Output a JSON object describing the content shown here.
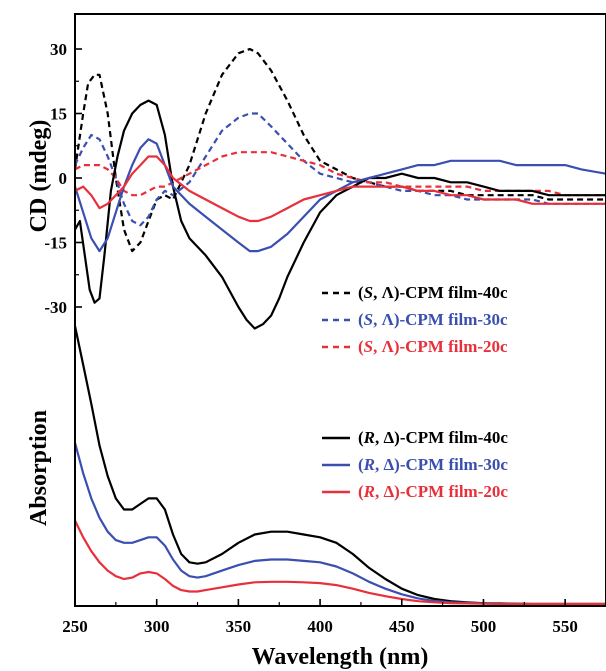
{
  "chart_data": [
    {
      "type": "line",
      "panel": "top",
      "ylabel": "CD (mdeg)",
      "xlim": [
        250,
        575
      ],
      "ylim": [
        -40,
        38
      ],
      "xticks": [
        250,
        300,
        350,
        400,
        450,
        500,
        550
      ],
      "yticks": [
        30,
        15,
        0,
        -15,
        -30
      ],
      "ytick_labels": [
        "30",
        "15",
        "0",
        "-15",
        "-30"
      ],
      "legend_position": "center-right",
      "series": [
        {
          "name": "(S, Λ)-CPM film-40c",
          "name_parts": [
            "(",
            "S",
            ", Λ)-CPM film-40c"
          ],
          "color": "#000000",
          "dash": "dashed",
          "x": [
            250,
            255,
            258,
            262,
            265,
            270,
            275,
            280,
            285,
            290,
            295,
            300,
            305,
            310,
            320,
            330,
            340,
            350,
            357,
            362,
            370,
            380,
            390,
            400,
            410,
            420,
            430,
            440,
            450,
            460,
            470,
            480,
            490,
            500,
            510,
            520,
            530,
            540,
            550,
            560,
            575
          ],
          "y": [
            2,
            15,
            22,
            24,
            24,
            15,
            0,
            -12,
            -17,
            -15,
            -10,
            -5,
            -4,
            -5,
            3,
            15,
            24,
            29,
            30,
            29,
            25,
            18,
            10,
            4,
            2,
            0,
            -1,
            -2,
            -2,
            -3,
            -3,
            -3,
            -4,
            -4,
            -4,
            -4,
            -4,
            -5,
            -5,
            -5,
            -5
          ]
        },
        {
          "name": "(S, Λ)-CPM film-30c",
          "name_parts": [
            "(",
            "S",
            ", Λ)-CPM film-30c"
          ],
          "color": "#3a4fb0",
          "dash": "dashed",
          "x": [
            250,
            255,
            260,
            265,
            270,
            275,
            280,
            285,
            290,
            295,
            300,
            305,
            310,
            320,
            330,
            340,
            350,
            357,
            362,
            370,
            380,
            390,
            400,
            410,
            420,
            430,
            440,
            450,
            460,
            470,
            480,
            490,
            500,
            510,
            520,
            530,
            540,
            550,
            560,
            575
          ],
          "y": [
            3,
            7,
            10,
            9,
            5,
            0,
            -6,
            -10,
            -11,
            -9,
            -5,
            -3,
            -4,
            -1,
            5,
            11,
            14,
            15,
            15,
            12,
            8,
            4,
            1,
            0,
            -1,
            -1,
            -2,
            -3,
            -3,
            -4,
            -4,
            -5,
            -5,
            -5,
            -5,
            -5,
            -6,
            -6,
            -6,
            -6
          ]
        },
        {
          "name": "(S, Λ)-CPM film-20c",
          "name_parts": [
            "(",
            "S",
            ", Λ)-CPM film-20c"
          ],
          "color": "#e8303a",
          "dash": "dashed",
          "x": [
            250,
            255,
            260,
            265,
            270,
            275,
            280,
            285,
            290,
            295,
            300,
            305,
            310,
            320,
            330,
            340,
            350,
            360,
            365,
            370,
            380,
            390,
            400,
            410,
            420,
            430,
            440,
            450,
            460,
            470,
            480,
            490,
            500,
            510,
            520,
            530,
            540,
            550,
            560,
            575
          ],
          "y": [
            2,
            3,
            3,
            3,
            2,
            0,
            -3,
            -4,
            -4,
            -3,
            -2,
            -2,
            -1,
            1,
            3,
            5,
            6,
            6,
            6,
            6,
            5,
            4,
            3,
            1,
            0,
            -1,
            -1,
            -2,
            -2,
            -2,
            -2,
            -2,
            -3,
            -3,
            -3,
            -3,
            -3,
            -4,
            -4,
            -4
          ]
        },
        {
          "name": "(R, Δ)-CPM film-40c",
          "color": "#000000",
          "dash": "solid",
          "x": [
            250,
            253,
            256,
            259,
            262,
            265,
            268,
            272,
            276,
            280,
            285,
            290,
            295,
            300,
            305,
            310,
            315,
            320,
            330,
            340,
            350,
            355,
            360,
            365,
            370,
            375,
            380,
            390,
            400,
            410,
            420,
            430,
            440,
            450,
            460,
            470,
            480,
            490,
            500,
            510,
            520,
            530,
            540,
            550,
            560,
            575
          ],
          "y": [
            -12,
            -10,
            -18,
            -26,
            -29,
            -28,
            -18,
            -3,
            5,
            11,
            15,
            17,
            18,
            17,
            10,
            -2,
            -10,
            -14,
            -18,
            -23,
            -30,
            -33,
            -35,
            -34,
            -32,
            -28,
            -23,
            -15,
            -8,
            -4,
            -2,
            0,
            0,
            1,
            0,
            0,
            -1,
            -1,
            -2,
            -3,
            -3,
            -3,
            -4,
            -4,
            -4,
            -4
          ]
        },
        {
          "name": "(R, Δ)-CPM film-30c",
          "color": "#3a4fb0",
          "dash": "solid",
          "x": [
            250,
            255,
            260,
            265,
            270,
            275,
            280,
            285,
            290,
            295,
            300,
            305,
            310,
            320,
            330,
            340,
            350,
            357,
            362,
            370,
            380,
            390,
            400,
            410,
            420,
            430,
            440,
            450,
            460,
            470,
            480,
            490,
            500,
            510,
            520,
            530,
            540,
            550,
            560,
            575
          ],
          "y": [
            -2,
            -8,
            -14,
            -17,
            -14,
            -8,
            -2,
            3,
            7,
            9,
            8,
            3,
            -2,
            -6,
            -9,
            -12,
            -15,
            -17,
            -17,
            -16,
            -13,
            -9,
            -5,
            -3,
            -1,
            0,
            1,
            2,
            3,
            3,
            4,
            4,
            4,
            4,
            3,
            3,
            3,
            3,
            2,
            1
          ]
        },
        {
          "name": "(R, Δ)-CPM film-20c",
          "color": "#e8303a",
          "dash": "solid",
          "x": [
            250,
            255,
            260,
            265,
            270,
            275,
            280,
            285,
            290,
            295,
            300,
            305,
            310,
            320,
            330,
            340,
            350,
            357,
            362,
            370,
            380,
            390,
            400,
            410,
            420,
            430,
            440,
            450,
            460,
            470,
            480,
            490,
            500,
            510,
            520,
            530,
            540,
            550,
            560,
            575
          ],
          "y": [
            -3,
            -2,
            -4,
            -7,
            -6,
            -4,
            -2,
            1,
            3,
            5,
            5,
            3,
            0,
            -3,
            -5,
            -7,
            -9,
            -10,
            -10,
            -9,
            -7,
            -5,
            -4,
            -3,
            -2,
            -2,
            -2,
            -2,
            -3,
            -3,
            -4,
            -4,
            -5,
            -5,
            -5,
            -6,
            -6,
            -6,
            -6,
            -6
          ]
        }
      ]
    },
    {
      "type": "line",
      "panel": "bottom",
      "ylabel": "Absorption",
      "xlabel": "Wavelength (nm)",
      "xlim": [
        250,
        575
      ],
      "ylim": [
        0,
        1
      ],
      "xticks": [
        250,
        300,
        350,
        400,
        450,
        500,
        550
      ],
      "xtick_labels": [
        "250",
        "300",
        "350",
        "400",
        "450",
        "500",
        "550"
      ],
      "legend_position": "center-right",
      "series": [
        {
          "name": "(R, Δ)-CPM film-40c",
          "name_parts": [
            "(",
            "R",
            ", Δ)-CPM film-40c"
          ],
          "color": "#000000",
          "dash": "solid",
          "x": [
            250,
            255,
            260,
            265,
            270,
            275,
            280,
            285,
            290,
            295,
            300,
            305,
            310,
            315,
            320,
            325,
            330,
            340,
            350,
            360,
            370,
            380,
            390,
            400,
            410,
            420,
            430,
            440,
            450,
            460,
            470,
            480,
            490,
            500,
            510,
            520,
            530,
            540,
            550,
            560,
            575
          ],
          "y": [
            1.0,
            0.86,
            0.72,
            0.57,
            0.46,
            0.38,
            0.34,
            0.34,
            0.36,
            0.38,
            0.38,
            0.34,
            0.25,
            0.18,
            0.15,
            0.145,
            0.15,
            0.18,
            0.22,
            0.25,
            0.26,
            0.26,
            0.25,
            0.24,
            0.22,
            0.18,
            0.13,
            0.09,
            0.055,
            0.032,
            0.018,
            0.01,
            0.006,
            0.003,
            0.002,
            0.001,
            0.0,
            0.0,
            0.0,
            0.0,
            0.0
          ]
        },
        {
          "name": "(R, Δ)-CPM film-30c",
          "name_parts": [
            "(",
            "R",
            ", Δ)-CPM film-30c"
          ],
          "color": "#3a4fb0",
          "dash": "solid",
          "x": [
            250,
            255,
            260,
            265,
            270,
            275,
            280,
            285,
            290,
            295,
            300,
            305,
            310,
            315,
            320,
            325,
            330,
            340,
            350,
            360,
            370,
            380,
            390,
            400,
            410,
            420,
            430,
            440,
            450,
            460,
            470,
            480,
            490,
            500,
            510,
            520,
            530,
            540,
            550,
            560,
            575
          ],
          "y": [
            0.58,
            0.47,
            0.38,
            0.31,
            0.26,
            0.23,
            0.22,
            0.22,
            0.23,
            0.24,
            0.24,
            0.21,
            0.16,
            0.12,
            0.1,
            0.095,
            0.1,
            0.12,
            0.14,
            0.155,
            0.16,
            0.16,
            0.155,
            0.15,
            0.135,
            0.11,
            0.08,
            0.055,
            0.035,
            0.02,
            0.011,
            0.006,
            0.004,
            0.002,
            0.001,
            0.0,
            0.0,
            0.0,
            0.0,
            0.0,
            0.0
          ]
        },
        {
          "name": "(R, Δ)-CPM film-20c",
          "name_parts": [
            "(",
            "R",
            ", Δ)-CPM film-20c"
          ],
          "color": "#e8303a",
          "dash": "solid",
          "x": [
            250,
            255,
            260,
            265,
            270,
            275,
            280,
            285,
            290,
            295,
            300,
            305,
            310,
            315,
            320,
            325,
            330,
            340,
            350,
            360,
            370,
            380,
            390,
            400,
            410,
            420,
            430,
            440,
            450,
            460,
            470,
            480,
            490,
            500,
            510,
            520,
            530,
            540,
            550,
            560,
            575
          ],
          "y": [
            0.3,
            0.24,
            0.19,
            0.15,
            0.12,
            0.1,
            0.09,
            0.095,
            0.11,
            0.115,
            0.11,
            0.09,
            0.065,
            0.05,
            0.045,
            0.045,
            0.05,
            0.06,
            0.07,
            0.078,
            0.08,
            0.08,
            0.078,
            0.075,
            0.068,
            0.055,
            0.04,
            0.028,
            0.018,
            0.01,
            0.006,
            0.003,
            0.002,
            0.001,
            0.0,
            0.0,
            0.0,
            0.0,
            0.0,
            0.0,
            0.0
          ]
        }
      ]
    }
  ]
}
